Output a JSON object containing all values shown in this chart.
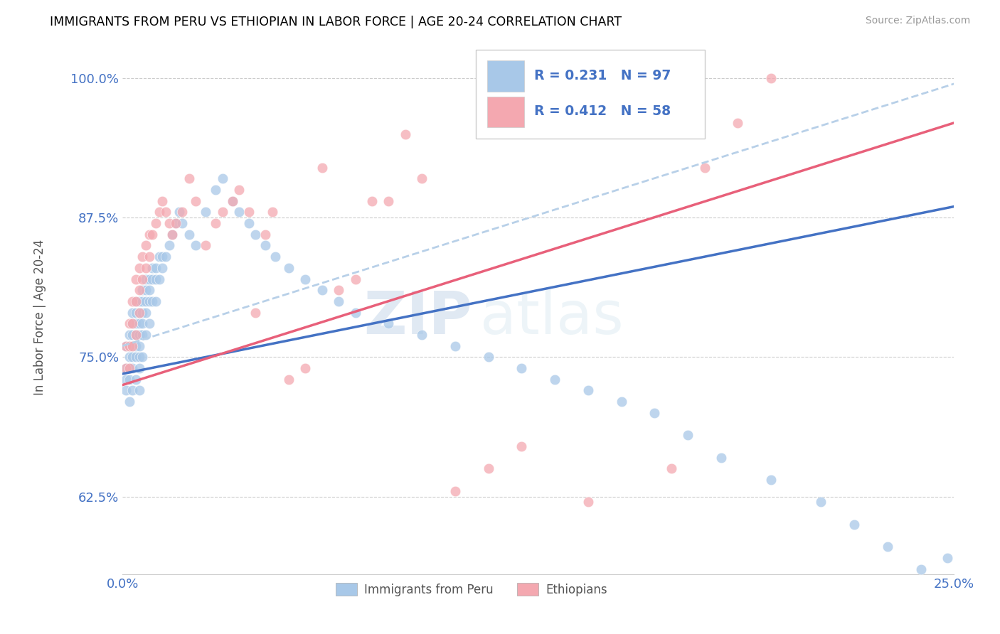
{
  "title": "IMMIGRANTS FROM PERU VS ETHIOPIAN IN LABOR FORCE | AGE 20-24 CORRELATION CHART",
  "source": "Source: ZipAtlas.com",
  "ylabel_label": "In Labor Force | Age 20-24",
  "legend_entry1": "Immigrants from Peru",
  "legend_entry2": "Ethiopians",
  "r1": "0.231",
  "n1": "97",
  "r2": "0.412",
  "n2": "58",
  "color_peru": "#a8c8e8",
  "color_eth": "#f4a8b0",
  "color_line_peru": "#4472c4",
  "color_line_eth": "#e8607a",
  "color_line_dashed": "#b8d0e8",
  "watermark_zip": "ZIP",
  "watermark_atlas": "atlas",
  "xlim": [
    0.0,
    0.25
  ],
  "ylim": [
    0.555,
    1.035
  ],
  "yticks": [
    0.625,
    0.75,
    0.875,
    1.0
  ],
  "xticks": [
    0.0,
    0.25
  ],
  "line_peru_x0": 0.0,
  "line_peru_y0": 0.735,
  "line_peru_x1": 0.25,
  "line_peru_y1": 0.885,
  "line_eth_x0": 0.0,
  "line_eth_y0": 0.725,
  "line_eth_x1": 0.25,
  "line_eth_y1": 0.96,
  "line_dash_x0": 0.0,
  "line_dash_y0": 0.76,
  "line_dash_x1": 0.25,
  "line_dash_y1": 0.995,
  "peru_x": [
    0.001,
    0.001,
    0.001,
    0.001,
    0.002,
    0.002,
    0.002,
    0.002,
    0.002,
    0.002,
    0.003,
    0.003,
    0.003,
    0.003,
    0.003,
    0.003,
    0.003,
    0.004,
    0.004,
    0.004,
    0.004,
    0.004,
    0.004,
    0.004,
    0.005,
    0.005,
    0.005,
    0.005,
    0.005,
    0.005,
    0.005,
    0.005,
    0.006,
    0.006,
    0.006,
    0.006,
    0.006,
    0.006,
    0.007,
    0.007,
    0.007,
    0.007,
    0.007,
    0.008,
    0.008,
    0.008,
    0.008,
    0.009,
    0.009,
    0.009,
    0.01,
    0.01,
    0.01,
    0.011,
    0.011,
    0.012,
    0.012,
    0.013,
    0.014,
    0.015,
    0.016,
    0.017,
    0.018,
    0.02,
    0.022,
    0.025,
    0.028,
    0.03,
    0.033,
    0.035,
    0.038,
    0.04,
    0.043,
    0.046,
    0.05,
    0.055,
    0.06,
    0.065,
    0.07,
    0.08,
    0.09,
    0.1,
    0.11,
    0.12,
    0.13,
    0.14,
    0.15,
    0.16,
    0.17,
    0.18,
    0.195,
    0.21,
    0.22,
    0.23,
    0.24,
    0.245,
    0.248
  ],
  "peru_y": [
    0.76,
    0.74,
    0.73,
    0.72,
    0.77,
    0.76,
    0.75,
    0.74,
    0.73,
    0.71,
    0.79,
    0.78,
    0.77,
    0.76,
    0.75,
    0.74,
    0.72,
    0.8,
    0.79,
    0.78,
    0.77,
    0.76,
    0.75,
    0.73,
    0.8,
    0.79,
    0.78,
    0.77,
    0.76,
    0.75,
    0.74,
    0.72,
    0.81,
    0.8,
    0.79,
    0.78,
    0.77,
    0.75,
    0.82,
    0.81,
    0.8,
    0.79,
    0.77,
    0.82,
    0.81,
    0.8,
    0.78,
    0.83,
    0.82,
    0.8,
    0.83,
    0.82,
    0.8,
    0.84,
    0.82,
    0.84,
    0.83,
    0.84,
    0.85,
    0.86,
    0.87,
    0.88,
    0.87,
    0.86,
    0.85,
    0.88,
    0.9,
    0.91,
    0.89,
    0.88,
    0.87,
    0.86,
    0.85,
    0.84,
    0.83,
    0.82,
    0.81,
    0.8,
    0.79,
    0.78,
    0.77,
    0.76,
    0.75,
    0.74,
    0.73,
    0.72,
    0.71,
    0.7,
    0.68,
    0.66,
    0.64,
    0.62,
    0.6,
    0.58,
    0.56,
    0.55,
    0.57
  ],
  "eth_x": [
    0.001,
    0.001,
    0.002,
    0.002,
    0.002,
    0.003,
    0.003,
    0.003,
    0.004,
    0.004,
    0.004,
    0.005,
    0.005,
    0.005,
    0.006,
    0.006,
    0.007,
    0.007,
    0.008,
    0.008,
    0.009,
    0.01,
    0.011,
    0.012,
    0.013,
    0.014,
    0.015,
    0.016,
    0.018,
    0.02,
    0.022,
    0.025,
    0.028,
    0.03,
    0.033,
    0.035,
    0.038,
    0.04,
    0.043,
    0.045,
    0.05,
    0.055,
    0.06,
    0.065,
    0.07,
    0.075,
    0.08,
    0.085,
    0.09,
    0.1,
    0.11,
    0.12,
    0.14,
    0.155,
    0.165,
    0.175,
    0.185,
    0.195
  ],
  "eth_y": [
    0.76,
    0.74,
    0.78,
    0.76,
    0.74,
    0.8,
    0.78,
    0.76,
    0.82,
    0.8,
    0.77,
    0.83,
    0.81,
    0.79,
    0.84,
    0.82,
    0.85,
    0.83,
    0.86,
    0.84,
    0.86,
    0.87,
    0.88,
    0.89,
    0.88,
    0.87,
    0.86,
    0.87,
    0.88,
    0.91,
    0.89,
    0.85,
    0.87,
    0.88,
    0.89,
    0.9,
    0.88,
    0.79,
    0.86,
    0.88,
    0.73,
    0.74,
    0.92,
    0.81,
    0.82,
    0.89,
    0.89,
    0.95,
    0.91,
    0.63,
    0.65,
    0.67,
    0.62,
    0.99,
    0.65,
    0.92,
    0.96,
    1.0
  ]
}
